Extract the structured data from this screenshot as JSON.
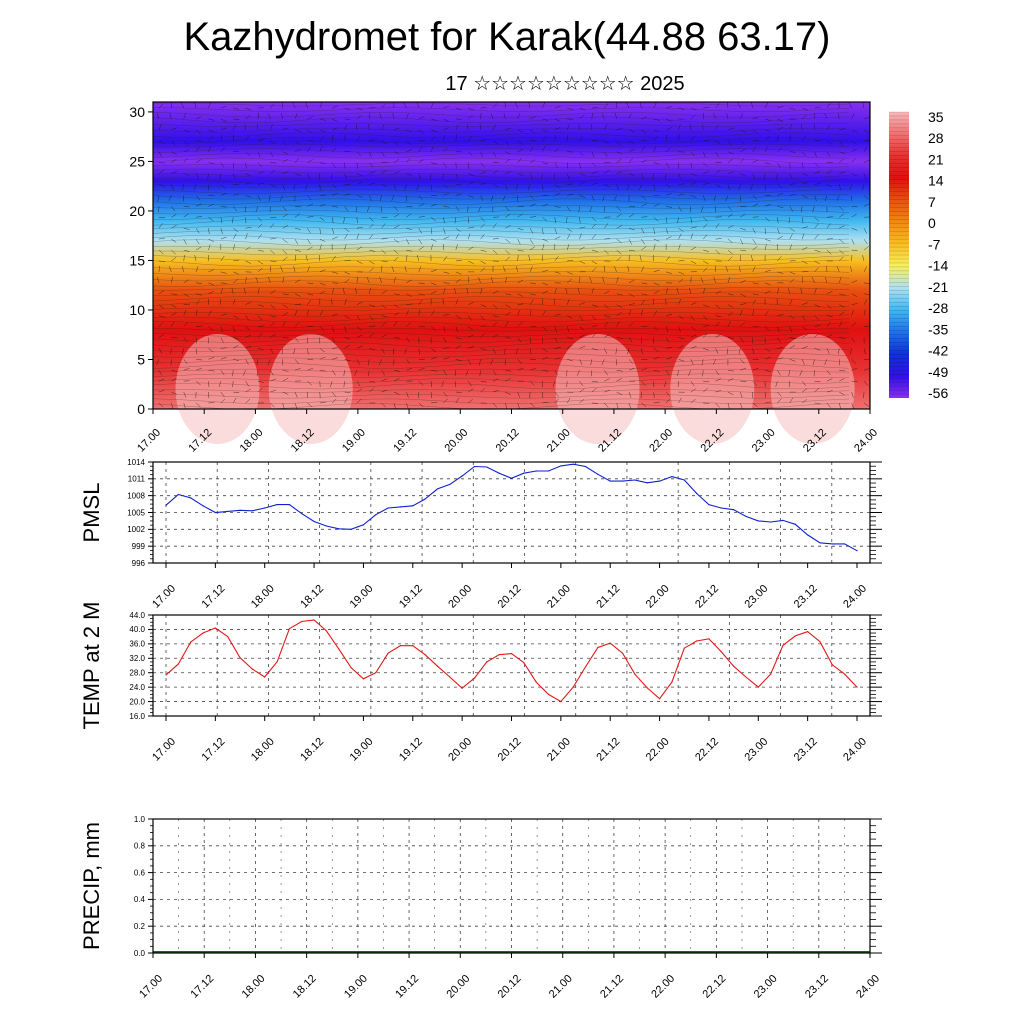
{
  "header": {
    "title": "Kazhydromet for Karak(44.88 63.17)",
    "subtitle": "17 ☆☆☆☆☆☆☆☆☆ 2025"
  },
  "time_ticks": [
    "17.00",
    "17.12",
    "18.00",
    "18.12",
    "19.00",
    "19.12",
    "20.00",
    "20.12",
    "21.00",
    "21.12",
    "22.00",
    "22.12",
    "23.00",
    "23.12",
    "24.00"
  ],
  "chart_data": [
    {
      "type": "heatmap",
      "title": "Kazhydromet for Karak(44.88 63.17)",
      "subtitle": "17 ☆☆☆☆☆☆☆☆☆ 2025",
      "x_ticks": [
        "17.00",
        "17.12",
        "18.00",
        "18.12",
        "19.00",
        "19.12",
        "20.00",
        "20.12",
        "21.00",
        "21.12",
        "22.00",
        "22.12",
        "23.00",
        "23.12",
        "24.00"
      ],
      "y_ticks": [
        0,
        5,
        10,
        15,
        20,
        25,
        30
      ],
      "ylim": [
        0,
        31
      ],
      "colorbar": {
        "labels": [
          "35",
          "28",
          "21",
          "14",
          "7",
          "0",
          "-7",
          "-14",
          "-21",
          "-28",
          "-35",
          "-42",
          "-49",
          "-56"
        ],
        "colors": [
          "#f7b8b8",
          "#f07070",
          "#e83030",
          "#e01010",
          "#e85010",
          "#f08a10",
          "#f8c020",
          "#f8f060",
          "#b0e0f0",
          "#40b8f0",
          "#2070e8",
          "#1030e0",
          "#3010e8",
          "#8830f0"
        ]
      },
      "profile": [
        {
          "y": 0,
          "value": 30
        },
        {
          "y": 4,
          "value": 24
        },
        {
          "y": 8,
          "value": 14
        },
        {
          "y": 12,
          "value": 4
        },
        {
          "y": 15,
          "value": -8
        },
        {
          "y": 17,
          "value": -18
        },
        {
          "y": 19,
          "value": -28
        },
        {
          "y": 21,
          "value": -38
        },
        {
          "y": 23,
          "value": -48
        },
        {
          "y": 25,
          "value": -58
        },
        {
          "y": 27,
          "value": -52
        },
        {
          "y": 31,
          "value": -55
        }
      ]
    },
    {
      "type": "line",
      "ylabel": "PMSL",
      "ylim": [
        996,
        1014
      ],
      "y_ticks": [
        "996",
        "999",
        "1002",
        "1005",
        "1008",
        "1011",
        "1014"
      ],
      "x": [
        0,
        3,
        6,
        9,
        12,
        15,
        18,
        21,
        24,
        27,
        30,
        33,
        36,
        39,
        42,
        45,
        48,
        51,
        54,
        57,
        60,
        63,
        66,
        69,
        72,
        75,
        78,
        81,
        84,
        87,
        90,
        93,
        96,
        99,
        102,
        105,
        108,
        111,
        114,
        117,
        120,
        123,
        126,
        129,
        132,
        135,
        138,
        141,
        144,
        147,
        150,
        153,
        156,
        159,
        162,
        165,
        168
      ],
      "series": [
        {
          "color": "#1020d0",
          "values": [
            1006.3,
            1008.2,
            1007.6,
            1006.2,
            1005.0,
            1005.2,
            1005.4,
            1005.3,
            1005.8,
            1006.4,
            1006.4,
            1004.8,
            1003.4,
            1002.6,
            1002.1,
            1002.0,
            1002.8,
            1004.6,
            1005.8,
            1006.0,
            1006.2,
            1007.4,
            1009.2,
            1010.0,
            1011.5,
            1013.2,
            1013.1,
            1012.0,
            1011.1,
            1012.0,
            1012.4,
            1012.4,
            1013.3,
            1013.6,
            1013.2,
            1011.8,
            1010.6,
            1010.6,
            1010.8,
            1010.3,
            1010.6,
            1011.4,
            1010.8,
            1008.4,
            1006.4,
            1005.8,
            1005.5,
            1004.3,
            1003.5,
            1003.3,
            1003.6,
            1002.9,
            1001.0,
            999.6,
            999.4,
            999.4,
            998.2
          ]
        }
      ]
    },
    {
      "type": "line",
      "ylabel": "TEMP at 2 M",
      "ylim": [
        16.0,
        44.0
      ],
      "y_ticks": [
        "16.0",
        "20.0",
        "24.0",
        "28.0",
        "32.0",
        "36.0",
        "40.0",
        "44.0"
      ],
      "x": [
        0,
        3,
        6,
        9,
        12,
        15,
        18,
        21,
        24,
        27,
        30,
        33,
        36,
        39,
        42,
        45,
        48,
        51,
        54,
        57,
        60,
        63,
        66,
        69,
        72,
        75,
        78,
        81,
        84,
        87,
        90,
        93,
        96,
        99,
        102,
        105,
        108,
        111,
        114,
        117,
        120,
        123,
        126,
        129,
        132,
        135,
        138,
        141,
        144,
        147,
        150,
        153,
        156,
        159,
        162,
        165,
        168
      ],
      "series": [
        {
          "color": "#e01818",
          "values": [
            27.4,
            30.4,
            36.5,
            39.0,
            40.4,
            38.0,
            32.2,
            29.0,
            26.8,
            31.0,
            40.2,
            42.2,
            42.6,
            39.6,
            34.6,
            29.4,
            26.3,
            28.0,
            33.4,
            35.5,
            35.5,
            33.0,
            29.8,
            26.8,
            23.7,
            26.5,
            31.0,
            33.0,
            33.3,
            30.8,
            25.4,
            22.0,
            20.0,
            24.0,
            29.6,
            35.0,
            36.2,
            33.4,
            27.6,
            23.8,
            20.8,
            25.4,
            34.8,
            36.8,
            37.4,
            33.8,
            29.8,
            26.8,
            24.0,
            27.6,
            35.6,
            38.2,
            39.4,
            36.6,
            30.2,
            27.6,
            24.0
          ]
        }
      ]
    },
    {
      "type": "bar",
      "ylabel": "PRECIP, mm",
      "ylim": [
        0.0,
        1.0
      ],
      "y_ticks": [
        "0.0",
        "0.2",
        "0.4",
        "0.6",
        "0.8",
        "1.0"
      ],
      "values": []
    }
  ]
}
